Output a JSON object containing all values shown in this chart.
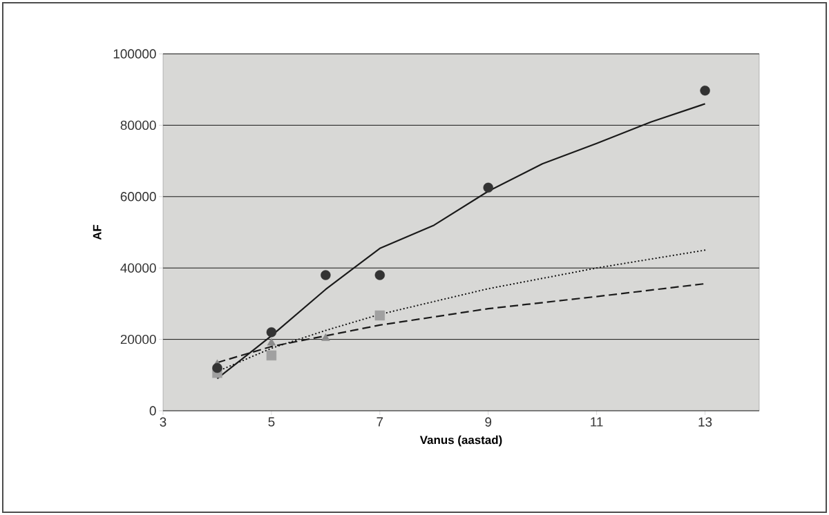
{
  "chart_data": {
    "type": "scatter",
    "xlabel": "Vanus (aastad)",
    "ylabel": "AF",
    "xlim": [
      3,
      14
    ],
    "xticks": [
      3,
      5,
      7,
      9,
      11,
      13
    ],
    "ylim": [
      0,
      100000
    ],
    "yticks": [
      0,
      20000,
      40000,
      60000,
      80000,
      100000
    ],
    "grid": "y",
    "series": [
      {
        "marker": "circle",
        "color": "#333333",
        "x": [
          4,
          5,
          6,
          7,
          9,
          13
        ],
        "values": [
          12000,
          22000,
          38000,
          38000,
          62500,
          89700
        ]
      },
      {
        "marker": "square",
        "color": "#a0a0a0",
        "x": [
          4,
          5,
          7
        ],
        "values": [
          10600,
          15500,
          26700
        ]
      },
      {
        "marker": "triangle",
        "color": "#8a8a8a",
        "x": [
          4,
          5,
          6
        ],
        "values": [
          13000,
          19000,
          20300
        ]
      },
      {
        "type": "line",
        "line_style": "solid",
        "color": "#1a1a1a",
        "x": [
          4,
          4.5,
          5,
          6,
          7,
          8,
          9,
          10,
          11,
          12,
          13
        ],
        "values": [
          9000,
          15000,
          21000,
          34000,
          45500,
          52000,
          61500,
          69200,
          74900,
          80900,
          86000
        ]
      },
      {
        "type": "line",
        "line_style": "dotted",
        "color": "#1a1a1a",
        "x": [
          4,
          5,
          6,
          7,
          9,
          11,
          13
        ],
        "values": [
          11000,
          17500,
          22500,
          27000,
          34200,
          40000,
          45000
        ]
      },
      {
        "type": "line",
        "line_style": "dashed",
        "color": "#1a1a1a",
        "x": [
          4,
          5,
          6,
          7,
          9,
          11,
          13
        ],
        "values": [
          13500,
          18000,
          21000,
          24000,
          28600,
          32000,
          35600
        ]
      }
    ]
  }
}
